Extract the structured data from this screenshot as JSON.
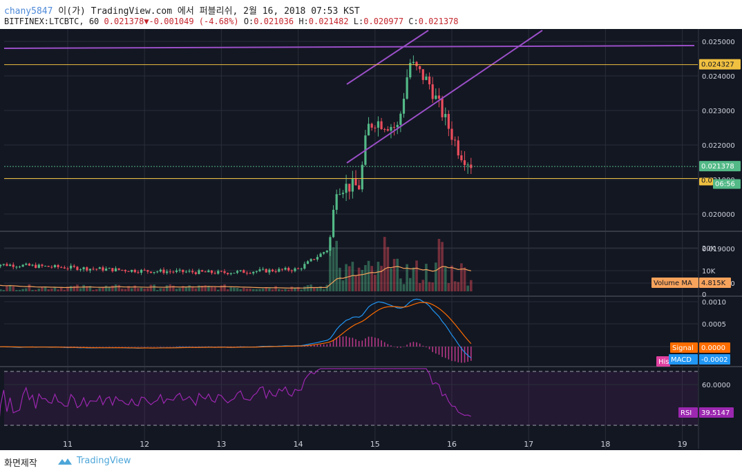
{
  "header": {
    "author": "chany5847",
    "published_text": "이(가) TradingView.com 에서 퍼블리쉬, 2월 16, 2018 07:53 KST",
    "symbol": "BITFINEX:LTCBTC, 60",
    "last": "0.021378",
    "arrow": "▼",
    "change": "-0.001049 (-4.68%)",
    "o_label": "O:",
    "o_value": "0.021036",
    "h_label": "H:",
    "h_value": "0.021482",
    "l_label": "L:",
    "l_value": "0.020977",
    "c_label": "C:",
    "c_value": "0.021378"
  },
  "colors": {
    "bg": "#131722",
    "grid": "#2a2e39",
    "up": "#53b987",
    "down": "#eb4d5c",
    "trend": "#9b4fc8",
    "hline": "#f0c040",
    "macd": "#2196f3",
    "signal": "#ff6d00",
    "rsi": "#9c27b0"
  },
  "price_axis": [
    "0.025000",
    "0.024000",
    "0.023000",
    "0.022000",
    "0.021000",
    "0.020000",
    "0.019000",
    "0.018000"
  ],
  "price_badges": {
    "level": "0.024327",
    "last": "0.021378",
    "level2": "0.0",
    "countdown": "06:56"
  },
  "volume_axis": [
    "20K",
    "10K",
    "0"
  ],
  "volume_ma": {
    "label": "Volume MA",
    "value": "4.815K"
  },
  "macd_axis": [
    "0.0010",
    "0.0005"
  ],
  "macd_badges": {
    "signal_label": "Signal",
    "signal_value": "0.0000",
    "macd_label": "MACD",
    "macd_value": "-0.0002",
    "hist_label": "His"
  },
  "rsi_axis": [
    "60.0000"
  ],
  "rsi_badge": {
    "label": "RSI",
    "value": "39.5147"
  },
  "time_axis": [
    "11",
    "12",
    "13",
    "14",
    "15",
    "16",
    "17",
    "18",
    "19"
  ],
  "footer": {
    "made": "화면제작",
    "brand": "TradingView"
  },
  "chart_data": {
    "type": "candlestick",
    "symbol": "BITFINEX:LTCBTC",
    "interval": "60",
    "ylim": [
      0.0175,
      0.0253
    ],
    "x_days": [
      11,
      12,
      13,
      14,
      15,
      16,
      17,
      18,
      19
    ],
    "key_points": [
      {
        "day": 10.0,
        "close": 0.01855
      },
      {
        "day": 11.0,
        "close": 0.01845
      },
      {
        "day": 12.0,
        "close": 0.01835
      },
      {
        "day": 13.0,
        "close": 0.0183
      },
      {
        "day": 14.0,
        "close": 0.0184
      },
      {
        "day": 14.4,
        "close": 0.019
      },
      {
        "day": 14.5,
        "close": 0.0208
      },
      {
        "day": 14.8,
        "close": 0.0208
      },
      {
        "day": 14.9,
        "close": 0.0225
      },
      {
        "day": 15.0,
        "close": 0.0227
      },
      {
        "day": 15.3,
        "close": 0.0225
      },
      {
        "day": 15.45,
        "close": 0.0244
      },
      {
        "day": 15.7,
        "close": 0.0238
      },
      {
        "day": 15.9,
        "close": 0.0228
      },
      {
        "day": 16.1,
        "close": 0.0218
      },
      {
        "day": 16.28,
        "close": 0.021378
      }
    ],
    "horizontal_levels": [
      0.024327,
      0.02103
    ],
    "rsi_last": 39.5147,
    "macd_last": -0.0002,
    "signal_last": 0.0,
    "volume_ma_last": 4815
  }
}
